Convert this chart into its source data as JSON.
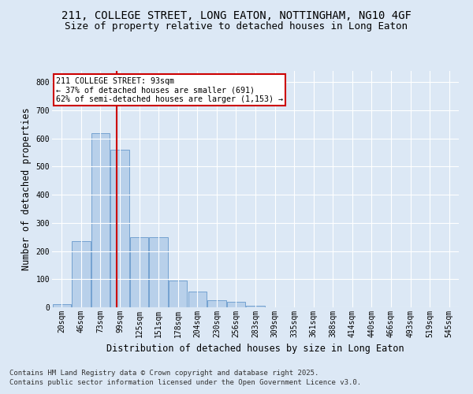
{
  "title1": "211, COLLEGE STREET, LONG EATON, NOTTINGHAM, NG10 4GF",
  "title2": "Size of property relative to detached houses in Long Eaton",
  "xlabel": "Distribution of detached houses by size in Long Eaton",
  "ylabel": "Number of detached properties",
  "footnote1": "Contains HM Land Registry data © Crown copyright and database right 2025.",
  "footnote2": "Contains public sector information licensed under the Open Government Licence v3.0.",
  "bin_labels": [
    "20sqm",
    "46sqm",
    "73sqm",
    "99sqm",
    "125sqm",
    "151sqm",
    "178sqm",
    "204sqm",
    "230sqm",
    "256sqm",
    "283sqm",
    "309sqm",
    "335sqm",
    "361sqm",
    "388sqm",
    "414sqm",
    "440sqm",
    "466sqm",
    "493sqm",
    "519sqm",
    "545sqm"
  ],
  "bar_values": [
    10,
    235,
    620,
    560,
    250,
    250,
    95,
    55,
    25,
    20,
    5,
    0,
    0,
    0,
    0,
    0,
    0,
    0,
    0,
    0,
    0
  ],
  "bar_color": "#b8d0ea",
  "bar_edge_color": "#6699cc",
  "vline_x": 2.82,
  "vline_color": "#cc0000",
  "annotation_text": "211 COLLEGE STREET: 93sqm\n← 37% of detached houses are smaller (691)\n62% of semi-detached houses are larger (1,153) →",
  "annotation_box_color": "#ffffff",
  "annotation_box_edge": "#cc0000",
  "ylim": [
    0,
    840
  ],
  "yticks": [
    0,
    100,
    200,
    300,
    400,
    500,
    600,
    700,
    800
  ],
  "background_color": "#dce8f5",
  "plot_background": "#dce8f5",
  "grid_color": "#ffffff",
  "title_fontsize": 10,
  "subtitle_fontsize": 9,
  "axis_label_fontsize": 8.5,
  "tick_fontsize": 7,
  "footnote_fontsize": 6.5
}
